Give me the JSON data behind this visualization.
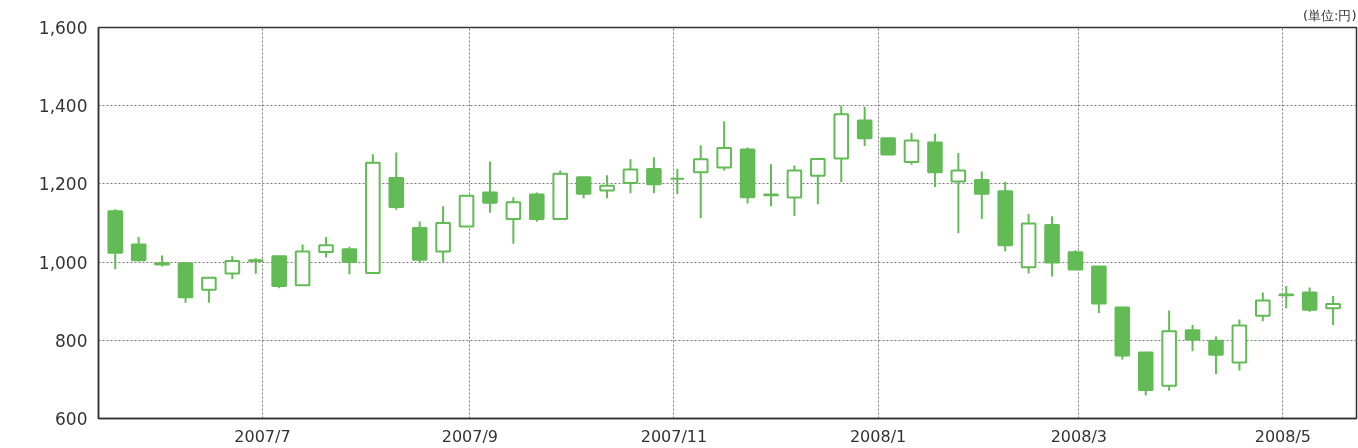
{
  "chart_data": {
    "type": "candlestick",
    "x": [
      "2007-05-18",
      "2007-05-25",
      "2007-06-01",
      "2007-06-08",
      "2007-06-15",
      "2007-06-22",
      "2007-06-29",
      "2007-07-06",
      "2007-07-13",
      "2007-07-20",
      "2007-07-27",
      "2007-08-03",
      "2007-08-10",
      "2007-08-17",
      "2007-08-24",
      "2007-08-31",
      "2007-09-07",
      "2007-09-14",
      "2007-09-21",
      "2007-09-28",
      "2007-10-05",
      "2007-10-12",
      "2007-10-19",
      "2007-10-26",
      "2007-11-02",
      "2007-11-09",
      "2007-11-16",
      "2007-11-23",
      "2007-11-30",
      "2007-12-07",
      "2007-12-14",
      "2007-12-21",
      "2007-12-28",
      "2008-01-04",
      "2008-01-11",
      "2008-01-18",
      "2008-01-25",
      "2008-02-01",
      "2008-02-08",
      "2008-02-15",
      "2008-02-22",
      "2008-02-29",
      "2008-03-07",
      "2008-03-14",
      "2008-03-21",
      "2008-03-28",
      "2008-04-04",
      "2008-04-11",
      "2008-04-18",
      "2008-04-25",
      "2008-05-02",
      "2008-05-09",
      "2008-05-16"
    ],
    "ohlc": [
      [
        1130,
        1135,
        982,
        1024
      ],
      [
        1045,
        1064,
        1002,
        1005
      ],
      [
        997,
        1017,
        989,
        994
      ],
      [
        997,
        998,
        896,
        910
      ],
      [
        929,
        960,
        896,
        960
      ],
      [
        971,
        1015,
        957,
        1003
      ],
      [
        1003,
        1010,
        970,
        1005
      ],
      [
        1015,
        1016,
        933,
        939
      ],
      [
        941,
        1045,
        940,
        1027
      ],
      [
        1026,
        1064,
        1012,
        1043
      ],
      [
        1033,
        1039,
        969,
        1000
      ],
      [
        972,
        1276,
        971,
        1254
      ],
      [
        1215,
        1280,
        1134,
        1141
      ],
      [
        1087,
        1104,
        997,
        1006
      ],
      [
        1027,
        1143,
        1000,
        1100
      ],
      [
        1091,
        1170,
        1091,
        1170
      ],
      [
        1178,
        1257,
        1126,
        1152
      ],
      [
        1110,
        1166,
        1047,
        1153
      ],
      [
        1173,
        1178,
        1103,
        1110
      ],
      [
        1110,
        1234,
        1110,
        1226
      ],
      [
        1217,
        1217,
        1163,
        1175
      ],
      [
        1183,
        1222,
        1163,
        1195
      ],
      [
        1202,
        1263,
        1176,
        1237
      ],
      [
        1238,
        1268,
        1176,
        1199
      ],
      [
        1213,
        1239,
        1174,
        1213
      ],
      [
        1230,
        1299,
        1113,
        1263
      ],
      [
        1242,
        1360,
        1234,
        1292
      ],
      [
        1288,
        1293,
        1150,
        1166
      ],
      [
        1173,
        1250,
        1143,
        1171
      ],
      [
        1165,
        1247,
        1118,
        1234
      ],
      [
        1221,
        1264,
        1148,
        1264
      ],
      [
        1265,
        1400,
        1204,
        1378
      ],
      [
        1362,
        1397,
        1297,
        1317
      ],
      [
        1317,
        1317,
        1275,
        1275
      ],
      [
        1256,
        1330,
        1249,
        1311
      ],
      [
        1306,
        1328,
        1192,
        1230
      ],
      [
        1206,
        1279,
        1074,
        1234
      ],
      [
        1210,
        1232,
        1110,
        1175
      ],
      [
        1181,
        1205,
        1028,
        1043
      ],
      [
        987,
        1123,
        971,
        1099
      ],
      [
        1095,
        1117,
        963,
        999
      ],
      [
        1025,
        1030,
        981,
        981
      ],
      [
        989,
        989,
        870,
        894
      ],
      [
        884,
        884,
        751,
        761
      ],
      [
        769,
        769,
        659,
        673
      ],
      [
        684,
        876,
        671,
        823
      ],
      [
        826,
        839,
        772,
        802
      ],
      [
        799,
        810,
        714,
        763
      ],
      [
        743,
        853,
        723,
        838
      ],
      [
        863,
        922,
        849,
        902
      ],
      [
        915,
        939,
        882,
        917
      ],
      [
        922,
        935,
        873,
        878
      ],
      [
        882,
        913,
        839,
        893
      ]
    ],
    "color": "#62bb55",
    "xlim": [
      "2007-05-13",
      "2008-05-23"
    ],
    "xticks": [
      {
        "value": "2007-07-01",
        "label": "2007/7"
      },
      {
        "value": "2007-09-01",
        "label": "2007/9"
      },
      {
        "value": "2007-11-01",
        "label": "2007/11"
      },
      {
        "value": "2008-01-01",
        "label": "2008/1"
      },
      {
        "value": "2008-03-01",
        "label": "2008/3"
      },
      {
        "value": "2008-05-01",
        "label": "2008/5"
      }
    ],
    "ylim": [
      600,
      1600
    ],
    "yticks": [
      {
        "value": 600,
        "label": "600"
      },
      {
        "value": 800,
        "label": "800"
      },
      {
        "value": 1000,
        "label": "1,000"
      },
      {
        "value": 1200,
        "label": "1,200"
      },
      {
        "value": 1400,
        "label": "1,400"
      },
      {
        "value": 1600,
        "label": "1,600"
      }
    ],
    "grid": true,
    "annotations": [
      "(単位:円)"
    ]
  }
}
